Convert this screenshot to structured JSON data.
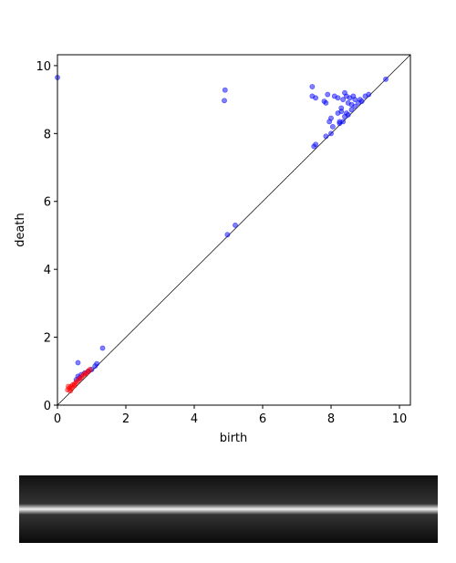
{
  "chart_data": {
    "type": "scatter",
    "x_label": "birth",
    "y_label": "death",
    "xlim": [
      0,
      10.32
    ],
    "ylim": [
      0,
      10.32
    ],
    "xticks": [
      0,
      2,
      4,
      6,
      8,
      10
    ],
    "yticks": [
      0,
      2,
      4,
      6,
      8,
      10
    ],
    "diagonal": true,
    "series": [
      {
        "color": "blue",
        "x": [
          0,
          4.88,
          4.9,
          4.97,
          5.2,
          1.32,
          0.6,
          9.6,
          7.45,
          7.45,
          7.55,
          7.5,
          7.55,
          7.8,
          7.85,
          7.9,
          7.85,
          7.95,
          8.0,
          8.0,
          8.05,
          8.1,
          8.2,
          8.25,
          8.3,
          8.3,
          8.35,
          8.4,
          8.4,
          8.45,
          8.5,
          8.5,
          8.55,
          8.6,
          8.6,
          8.7,
          8.7,
          8.8,
          8.85,
          8.9,
          9.0,
          9.1,
          8.35,
          8.45,
          8.65,
          8.2,
          8.25,
          0.55,
          0.6,
          0.7,
          0.8,
          0.9,
          1.0,
          1.1,
          1.15,
          0.65
        ],
        "y": [
          9.65,
          8.97,
          9.28,
          5.02,
          5.3,
          1.68,
          1.25,
          9.6,
          9.38,
          9.1,
          9.05,
          7.62,
          7.68,
          8.95,
          8.9,
          9.15,
          7.92,
          8.35,
          8.45,
          8.0,
          8.2,
          9.1,
          9.05,
          8.3,
          8.65,
          8.75,
          9.0,
          9.2,
          8.5,
          8.6,
          8.55,
          8.9,
          9.05,
          8.7,
          8.85,
          8.8,
          9.0,
          8.9,
          9.0,
          8.95,
          9.1,
          9.15,
          8.35,
          9.1,
          9.1,
          8.6,
          8.35,
          0.75,
          0.85,
          0.9,
          0.95,
          1.0,
          1.05,
          1.15,
          1.22,
          0.8
        ]
      },
      {
        "color": "red",
        "x": [
          0.3,
          0.32,
          0.35,
          0.4,
          0.45,
          0.5,
          0.55,
          0.6,
          0.65,
          0.7,
          0.75,
          0.8,
          0.85,
          0.9,
          0.95,
          0.38,
          0.42,
          0.5
        ],
        "y": [
          0.45,
          0.55,
          0.5,
          0.55,
          0.6,
          0.62,
          0.68,
          0.72,
          0.78,
          0.82,
          0.88,
          0.92,
          0.95,
          1.0,
          1.05,
          0.42,
          0.5,
          0.58
        ]
      }
    ]
  }
}
